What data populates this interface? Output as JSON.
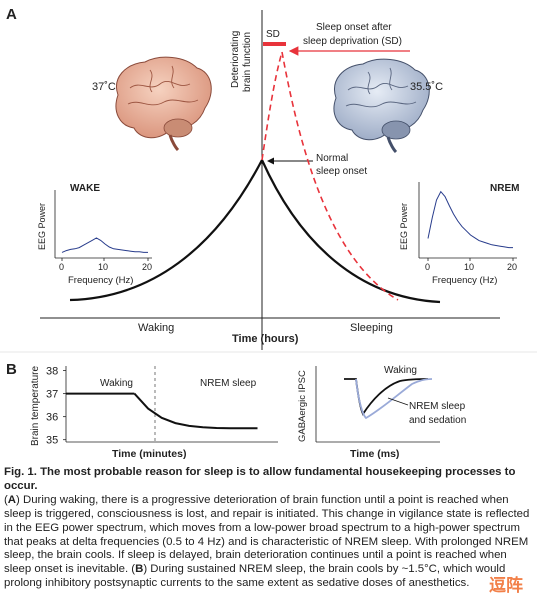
{
  "panel_a": {
    "label": "A",
    "y_axis_label_1": "Deteriorating",
    "y_axis_label_2": "brain function",
    "x_axis_label": "Time (hours)",
    "waking_label": "Waking",
    "sleeping_label": "Sleeping",
    "sd_badge": "SD",
    "wake_temp": "37˚C",
    "sleep_temp": "35.5˚C",
    "sd_annotation_1": "Sleep onset after",
    "sd_annotation_2": "sleep deprivation (SD)",
    "normal_annotation_1": "Normal",
    "normal_annotation_2": "sleep onset",
    "colors": {
      "red": "#e8333b",
      "black": "#111111",
      "eeg": "#283c8c"
    },
    "wake_inset": {
      "title": "WAKE",
      "ylabel": "EEG Power",
      "xlabel": "Frequency (Hz)",
      "ticks": [
        "0",
        "10",
        "20"
      ]
    },
    "nrem_inset": {
      "title": "NREM",
      "ylabel": "EEG Power",
      "xlabel": "Frequency (Hz)",
      "ticks": [
        "0",
        "10",
        "20"
      ]
    }
  },
  "panel_b": {
    "label": "B",
    "temp_chart": {
      "ylabel": "Brain temperature",
      "xlabel": "Time (minutes)",
      "yticks": [
        "38",
        "37",
        "36",
        "35"
      ],
      "waking_label": "Waking",
      "nrem_label": "NREM sleep"
    },
    "ipsc_chart": {
      "ylabel": "GABAergic IPSC",
      "xlabel": "Time (ms)",
      "waking_label": "Waking",
      "nrem_label_1": "NREM sleep",
      "nrem_label_2": "and sedation"
    }
  },
  "chart_data": [
    {
      "type": "line",
      "title": "",
      "xlabel": "Time (minutes)",
      "ylabel": "Brain temperature",
      "ylim": [
        35,
        38
      ],
      "series": [
        {
          "name": "Waking",
          "x": [
            0,
            1,
            2,
            3,
            4,
            5
          ],
          "y": [
            37,
            37,
            37,
            37,
            37,
            37
          ]
        },
        {
          "name": "NREM sleep",
          "x": [
            5,
            6,
            7,
            8,
            9,
            10,
            11,
            12,
            13,
            14
          ],
          "y": [
            37,
            36.35,
            35.95,
            35.72,
            35.6,
            35.54,
            35.51,
            35.5,
            35.5,
            35.5
          ]
        }
      ],
      "grid": false
    },
    {
      "type": "line",
      "title": "WAKE",
      "xlabel": "Frequency (Hz)",
      "ylabel": "EEG Power",
      "xlim": [
        0,
        20
      ],
      "series": [
        {
          "x": [
            0,
            1,
            2,
            3,
            4,
            5,
            6,
            7,
            8,
            9,
            10,
            11,
            12,
            13,
            14,
            15,
            16,
            17,
            18,
            19,
            20
          ],
          "y": [
            0.06,
            0.09,
            0.11,
            0.12,
            0.14,
            0.18,
            0.22,
            0.26,
            0.3,
            0.26,
            0.2,
            0.15,
            0.12,
            0.11,
            0.1,
            0.09,
            0.08,
            0.07,
            0.07,
            0.06,
            0.06
          ]
        }
      ]
    },
    {
      "type": "line",
      "title": "NREM",
      "xlabel": "Frequency (Hz)",
      "ylabel": "EEG Power",
      "xlim": [
        0,
        20
      ],
      "series": [
        {
          "x": [
            0,
            1,
            2,
            3,
            4,
            5,
            6,
            7,
            8,
            9,
            10,
            11,
            12,
            13,
            14,
            15,
            16,
            17,
            18,
            19,
            20
          ],
          "y": [
            0.25,
            0.55,
            0.8,
            0.92,
            0.85,
            0.72,
            0.6,
            0.5,
            0.42,
            0.36,
            0.3,
            0.26,
            0.22,
            0.2,
            0.18,
            0.16,
            0.15,
            0.14,
            0.13,
            0.12,
            0.12
          ]
        }
      ]
    }
  ],
  "caption": {
    "title": "Fig. 1. The most probable reason for sleep is to allow fundamental housekeeping processes to occur.",
    "label_a": "A",
    "text_a": "During waking, there is a progressive deterioration of brain function until a point is reached when sleep is triggered, consciousness is lost, and repair is initiated. This change in vigilance state is reflected in the EEG power spectrum, which moves from a low-power broad spectrum to a high-power spectrum that peaks at delta frequencies (0.5 to 4 Hz) and is characteristic of NREM sleep. With prolonged NREM sleep, the brain cools. If sleep is delayed, brain deterioration continues until a point is reached when sleep onset is inevitable.",
    "label_b": "B",
    "text_b": "During sustained NREM sleep, the brain cools by ~1.5°C, which would prolong inhibitory postsynaptic currents to the same extent as sedative doses of anesthetics."
  },
  "watermark": "逗阵"
}
